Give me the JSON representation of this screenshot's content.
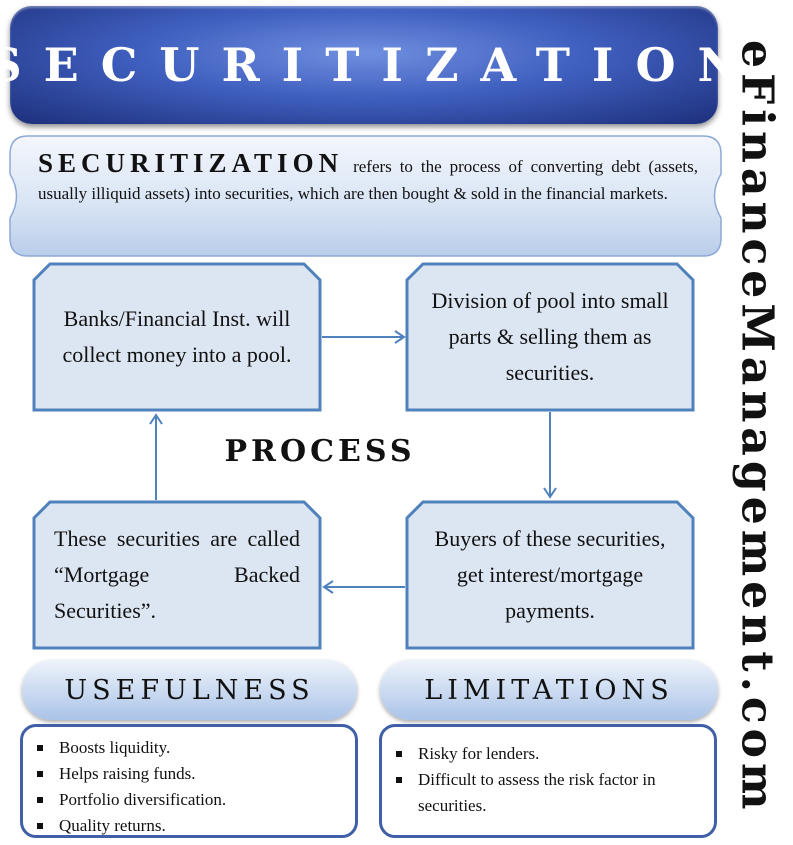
{
  "title": "SECURITIZATION",
  "brand": "eFinanceManagement.com",
  "definition": {
    "term": "SECURITIZATION",
    "text": "refers to the process of converting debt (assets, usually illiquid assets) into securities, which are then bought & sold in the financial markets."
  },
  "process": {
    "label": "PROCESS",
    "steps": [
      "Banks/Financial Inst. will collect money into a pool.",
      "Division of pool into small parts & selling them as securities.",
      "Buyers of these securities, get interest/mortgage payments.",
      "These securities are called “Mortgage Backed Securities”."
    ]
  },
  "usefulness": {
    "heading": "USEFULNESS",
    "items": [
      "Boosts liquidity.",
      "Helps raising funds.",
      "Portfolio diversification.",
      "Quality returns."
    ]
  },
  "limitations": {
    "heading": "LIMITATIONS",
    "items": [
      "Risky for lenders.",
      "Difficult to assess the risk factor in securities."
    ]
  },
  "colors": {
    "banner": "#2e4ca8",
    "box_fill": "#dce6f2",
    "box_border": "#4f81bd",
    "arrow": "#4f81bd"
  }
}
